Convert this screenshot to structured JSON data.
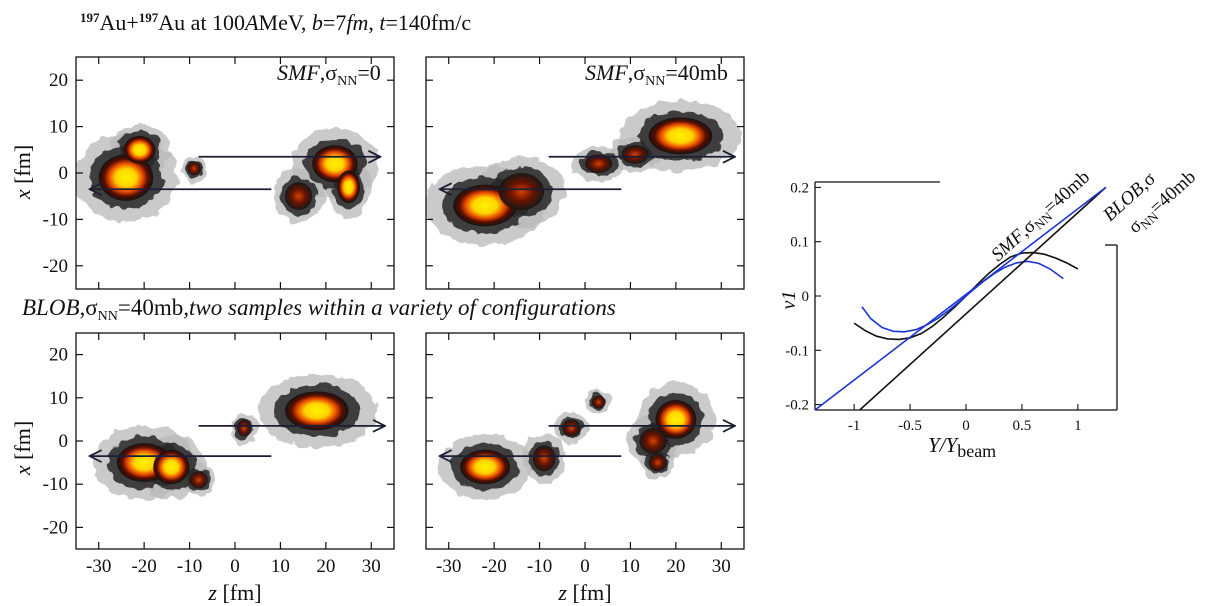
{
  "figure": {
    "title_main": "Au+Au at 100AMeV,  b=7fm,  t=140fm/c",
    "title_parts": {
      "mass": "197",
      "el1": "Au+",
      "el2": "Au at 100",
      "unitA": "A",
      "unit_rest": "MeV,  ",
      "b": "b",
      "b_val": "=7",
      "fm": "fm",
      "comma": ",  ",
      "t": "t",
      "t_val": "=140fm/c"
    },
    "row2_caption": {
      "blob": "BLOB",
      "sigma": ",σ",
      "nn": "NN",
      "val": "=40mb",
      "rest": ",two samples within a variety of configurations"
    },
    "panel_labels": {
      "p1": {
        "model": "SMF",
        "sigma": ",σ",
        "nn": "NN",
        "val": "=0"
      },
      "p2": {
        "model": "SMF",
        "sigma": ",σ",
        "nn": "NN",
        "val": "=40mb"
      }
    },
    "density_axes": {
      "xlabel_var": "z",
      "xlabel_unit": " [fm]",
      "ylabel_var": "x",
      "ylabel_unit": " [fm]",
      "xticks": [
        "-30",
        "-20",
        "-10",
        "0",
        "10",
        "20",
        "30"
      ],
      "yticks": [
        "20",
        "10",
        "0",
        "-10",
        "-20"
      ],
      "xlim": [
        -35,
        35
      ],
      "ylim": [
        -25,
        25
      ]
    },
    "colors": {
      "low": "#b8b8b8",
      "mid": "#262626",
      "high": "#b52a00",
      "peak": "#ffe000",
      "arrow": "#1c1f33",
      "smf_line": "#111111",
      "blob_line": "#1a35d6"
    }
  },
  "chart_data": [
    {
      "type": "heatmap",
      "panel": "top-left",
      "blobs": [
        {
          "z": -24,
          "x": -1,
          "rz": 6,
          "rx": 5,
          "level": 1.0
        },
        {
          "z": -21,
          "x": 5,
          "rz": 3.5,
          "rx": 3,
          "level": 0.8
        },
        {
          "z": -9,
          "x": 1,
          "rz": 1.5,
          "rx": 1.5,
          "level": 0.5
        },
        {
          "z": 22,
          "x": 2,
          "rz": 5,
          "rx": 4,
          "level": 1.0
        },
        {
          "z": 25,
          "x": -3,
          "rz": 2.5,
          "rx": 3.5,
          "level": 0.8
        },
        {
          "z": 14,
          "x": -5,
          "rz": 3,
          "rx": 3,
          "level": 0.6
        }
      ],
      "arrows": [
        {
          "from": [
            -8,
            3.5
          ],
          "to": [
            32,
            3.5
          ]
        },
        {
          "from": [
            8,
            -3.5
          ],
          "to": [
            -32,
            -3.5
          ]
        }
      ]
    },
    {
      "type": "heatmap",
      "panel": "top-right",
      "blobs": [
        {
          "z": -22,
          "x": -7,
          "rz": 7,
          "rx": 4.5,
          "level": 1.0
        },
        {
          "z": -14,
          "x": -4,
          "rz": 5,
          "rx": 4,
          "level": 0.55
        },
        {
          "z": 21,
          "x": 8,
          "rz": 7,
          "rx": 4,
          "level": 1.0
        },
        {
          "z": 3,
          "x": 2,
          "rz": 3,
          "rx": 2,
          "level": 0.5
        },
        {
          "z": 11,
          "x": 4,
          "rz": 3,
          "rx": 2,
          "level": 0.45
        }
      ],
      "arrows": [
        {
          "from": [
            -8,
            3.5
          ],
          "to": [
            33,
            3.5
          ]
        },
        {
          "from": [
            8,
            -3.5
          ],
          "to": [
            -32,
            -3.5
          ]
        }
      ]
    },
    {
      "type": "heatmap",
      "panel": "bottom-left",
      "blobs": [
        {
          "z": -20,
          "x": -5,
          "rz": 6,
          "rx": 4.5,
          "level": 1.0
        },
        {
          "z": -14,
          "x": -6,
          "rz": 4,
          "rx": 4,
          "level": 0.75
        },
        {
          "z": 18,
          "x": 7,
          "rz": 7,
          "rx": 4.5,
          "level": 1.0
        },
        {
          "z": 2,
          "x": 3,
          "rz": 1.5,
          "rx": 2,
          "level": 0.5
        },
        {
          "z": -8,
          "x": -9,
          "rz": 2,
          "rx": 2,
          "level": 0.45
        }
      ],
      "arrows": [
        {
          "from": [
            -8,
            3.5
          ],
          "to": [
            33,
            3.5
          ]
        },
        {
          "from": [
            8,
            -3.5
          ],
          "to": [
            -32,
            -3.5
          ]
        }
      ]
    },
    {
      "type": "heatmap",
      "panel": "bottom-right",
      "blobs": [
        {
          "z": -22,
          "x": -6,
          "rz": 5.5,
          "rx": 4,
          "level": 1.0
        },
        {
          "z": 20,
          "x": 5,
          "rz": 4.5,
          "rx": 4.5,
          "level": 1.0
        },
        {
          "z": 15,
          "x": 0,
          "rz": 3,
          "rx": 3,
          "level": 0.7
        },
        {
          "z": 16,
          "x": -5,
          "rz": 2,
          "rx": 2,
          "level": 0.7
        },
        {
          "z": 3,
          "x": 9,
          "rz": 1.5,
          "rx": 1.5,
          "level": 0.6
        },
        {
          "z": -3,
          "x": 3,
          "rz": 2,
          "rx": 2,
          "level": 0.6
        },
        {
          "z": -9,
          "x": -4,
          "rz": 2.5,
          "rx": 3,
          "level": 0.55
        }
      ],
      "arrows": [
        {
          "from": [
            -8,
            3.5
          ],
          "to": [
            33,
            3.5
          ]
        },
        {
          "from": [
            8,
            -3.5
          ],
          "to": [
            -32,
            -3.5
          ]
        }
      ]
    },
    {
      "type": "line",
      "panel": "v1",
      "xlabel_var": "Y/Y",
      "xlabel_sub": "beam",
      "ylabel": "v1",
      "xlim": [
        -1.35,
        1.35
      ],
      "ylim": [
        -0.21,
        0.21
      ],
      "xticks": [
        "-1",
        "-0.5",
        "0",
        "0.5",
        "1"
      ],
      "yticks": [
        "0.2",
        "0.1",
        "0",
        "-0.1",
        "-0.2"
      ],
      "series": [
        {
          "name": "SMF,σNN=40mb",
          "label": {
            "model": "SMF",
            "sigma": ",σ",
            "nn": "NN",
            "val": "=40mb"
          },
          "color": "#111111",
          "x": [
            -1.0,
            -0.9,
            -0.8,
            -0.7,
            -0.6,
            -0.5,
            -0.4,
            -0.3,
            -0.2,
            -0.1,
            0.0,
            0.1,
            0.2,
            0.3,
            0.4,
            0.5,
            0.6,
            0.7,
            0.8,
            0.9,
            1.0
          ],
          "y": [
            -0.05,
            -0.064,
            -0.074,
            -0.079,
            -0.08,
            -0.077,
            -0.069,
            -0.056,
            -0.039,
            -0.02,
            0.0,
            0.021,
            0.041,
            0.058,
            0.072,
            0.079,
            0.08,
            0.077,
            0.07,
            0.061,
            0.05
          ]
        },
        {
          "name": "BLOB,σNN=40mb",
          "label": {
            "model": "BLOB",
            "sigma": ",σ",
            "nn": "NN",
            "val": "=40mb"
          },
          "color": "#1a35d6",
          "x": [
            -0.93,
            -0.85,
            -0.75,
            -0.65,
            -0.55,
            -0.45,
            -0.35,
            -0.25,
            -0.15,
            -0.05,
            0.05,
            0.15,
            0.25,
            0.35,
            0.45,
            0.55,
            0.65,
            0.75,
            0.87
          ],
          "y": [
            -0.02,
            -0.042,
            -0.058,
            -0.065,
            -0.066,
            -0.062,
            -0.053,
            -0.041,
            -0.026,
            -0.009,
            0.009,
            0.026,
            0.041,
            0.053,
            0.061,
            0.064,
            0.06,
            0.05,
            0.032
          ]
        },
        {
          "name": "SMF slope",
          "color": "#111111",
          "x": [
            -0.95,
            1.25
          ],
          "y": [
            -0.21,
            0.2
          ]
        },
        {
          "name": "BLOB slope",
          "color": "#1a35d6",
          "x": [
            -1.35,
            1.25
          ],
          "y": [
            -0.21,
            0.2
          ]
        }
      ]
    }
  ]
}
